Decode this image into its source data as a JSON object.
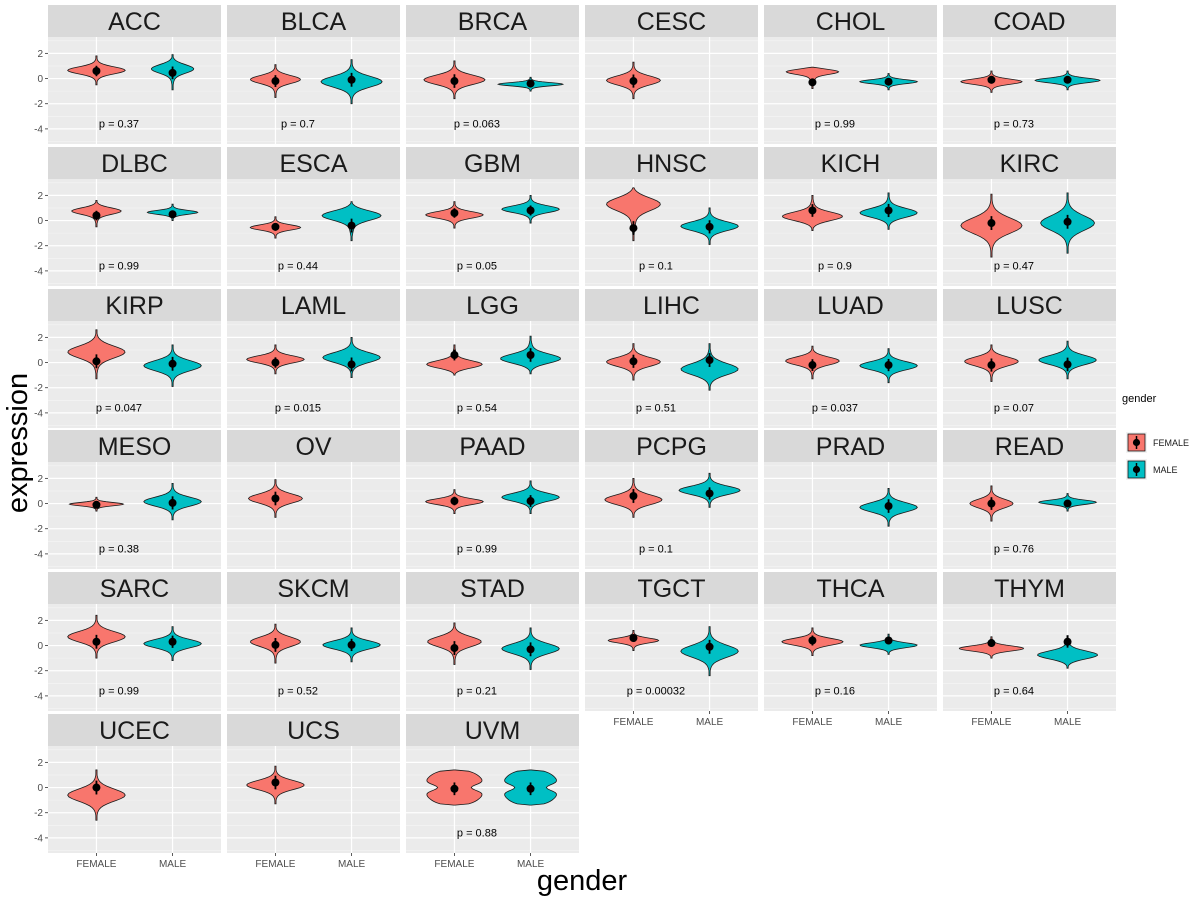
{
  "chart_data": {
    "type": "violin",
    "xlabel": "gender",
    "ylabel": "expression",
    "categories": [
      "FEMALE",
      "MALE"
    ],
    "y_ticks": [
      2,
      0,
      -2,
      -4
    ],
    "ylim": [
      -5.2,
      3.3
    ],
    "legend": {
      "title": "gender",
      "position": "right",
      "entries": [
        {
          "label": "FEMALE",
          "color": "#F8766D"
        },
        {
          "label": "MALE",
          "color": "#00BFC4"
        }
      ]
    },
    "panel_background": "#EBEBEB",
    "strip_background": "#D9D9D9",
    "panels": [
      {
        "name": "ACC",
        "p": "p = 0.37",
        "groups": [
          {
            "g": "FEMALE",
            "mean": 0.6,
            "lo": -0.5,
            "hi": 1.8,
            "w": 0.8,
            "peak": 0.5
          },
          {
            "g": "MALE",
            "mean": 0.45,
            "lo": -0.9,
            "hi": 1.9,
            "w": 0.6,
            "peak": 0.4
          }
        ]
      },
      {
        "name": "BLCA",
        "p": "p = 0.7",
        "groups": [
          {
            "g": "FEMALE",
            "mean": -0.2,
            "lo": -1.5,
            "hi": 1.1,
            "w": 0.7,
            "peak": 0.45
          },
          {
            "g": "MALE",
            "mean": -0.1,
            "lo": -2.0,
            "hi": 1.5,
            "w": 0.85,
            "peak": 0.5
          }
        ]
      },
      {
        "name": "BRCA",
        "p": "p = 0.063",
        "groups": [
          {
            "g": "FEMALE",
            "mean": -0.2,
            "lo": -1.6,
            "hi": 1.4,
            "w": 0.85,
            "peak": 0.5
          },
          {
            "g": "MALE",
            "mean": -0.4,
            "lo": -1.0,
            "hi": 0.1,
            "w": 0.9,
            "peak": 0.5
          }
        ]
      },
      {
        "name": "CESC",
        "p": "",
        "groups": [
          {
            "g": "FEMALE",
            "mean": -0.2,
            "lo": -1.6,
            "hi": 1.3,
            "w": 0.75,
            "peak": 0.5
          }
        ]
      },
      {
        "name": "CHOL",
        "p": "p = 0.99",
        "groups": [
          {
            "g": "FEMALE",
            "mean": -0.3,
            "lo": -0.8,
            "hi": 0.9,
            "w": 0.85,
            "peak": 0.2
          },
          {
            "g": "MALE",
            "mean": -0.25,
            "lo": -0.9,
            "hi": 0.4,
            "w": 0.8,
            "peak": 0.5
          }
        ]
      },
      {
        "name": "COAD",
        "p": "p = 0.73",
        "groups": [
          {
            "g": "FEMALE",
            "mean": -0.1,
            "lo": -1.1,
            "hi": 0.6,
            "w": 0.85,
            "peak": 0.5
          },
          {
            "g": "MALE",
            "mean": -0.1,
            "lo": -0.9,
            "hi": 0.6,
            "w": 0.9,
            "peak": 0.5
          }
        ]
      },
      {
        "name": "DLBC",
        "p": "p = 0.99",
        "groups": [
          {
            "g": "FEMALE",
            "mean": 0.4,
            "lo": -0.5,
            "hi": 1.6,
            "w": 0.7,
            "peak": 0.4
          },
          {
            "g": "MALE",
            "mean": 0.5,
            "lo": 0.0,
            "hi": 1.3,
            "w": 0.7,
            "peak": 0.5
          }
        ]
      },
      {
        "name": "ESCA",
        "p": "p = 0.44",
        "groups": [
          {
            "g": "FEMALE",
            "mean": -0.5,
            "lo": -1.4,
            "hi": 0.3,
            "w": 0.7,
            "peak": 0.5
          },
          {
            "g": "MALE",
            "mean": -0.4,
            "lo": -1.6,
            "hi": 1.5,
            "w": 0.85,
            "peak": 0.35
          }
        ]
      },
      {
        "name": "GBM",
        "p": "p = 0.05",
        "groups": [
          {
            "g": "FEMALE",
            "mean": 0.6,
            "lo": -0.6,
            "hi": 1.5,
            "w": 0.8,
            "peak": 0.5
          },
          {
            "g": "MALE",
            "mean": 0.8,
            "lo": -0.2,
            "hi": 2.0,
            "w": 0.8,
            "peak": 0.5
          }
        ]
      },
      {
        "name": "HNSC",
        "p": "p = 0.1",
        "groups": [
          {
            "g": "FEMALE",
            "mean": -0.6,
            "lo": -1.6,
            "hi": 2.6,
            "w": 0.8,
            "peak": 0.3
          },
          {
            "g": "MALE",
            "mean": -0.5,
            "lo": -1.9,
            "hi": 1.0,
            "w": 0.8,
            "peak": 0.5
          }
        ]
      },
      {
        "name": "KICH",
        "p": "p = 0.9",
        "groups": [
          {
            "g": "FEMALE",
            "mean": 0.8,
            "lo": -0.8,
            "hi": 2.0,
            "w": 0.85,
            "peak": 0.6
          },
          {
            "g": "MALE",
            "mean": 0.8,
            "lo": -0.7,
            "hi": 2.2,
            "w": 0.8,
            "peak": 0.55
          }
        ]
      },
      {
        "name": "KIRC",
        "p": "p = 0.47",
        "groups": [
          {
            "g": "FEMALE",
            "mean": -0.2,
            "lo": -2.9,
            "hi": 2.1,
            "w": 0.85,
            "peak": 0.5
          },
          {
            "g": "MALE",
            "mean": -0.1,
            "lo": -2.6,
            "hi": 2.2,
            "w": 0.75,
            "peak": 0.5
          }
        ]
      },
      {
        "name": "KIRP",
        "p": "p = 0.047",
        "groups": [
          {
            "g": "FEMALE",
            "mean": 0.1,
            "lo": -1.3,
            "hi": 2.6,
            "w": 0.8,
            "peak": 0.45
          },
          {
            "g": "MALE",
            "mean": -0.1,
            "lo": -1.9,
            "hi": 1.4,
            "w": 0.8,
            "peak": 0.5
          }
        ]
      },
      {
        "name": "LAML",
        "p": "p = 0.015",
        "groups": [
          {
            "g": "FEMALE",
            "mean": 0.0,
            "lo": -0.9,
            "hi": 1.4,
            "w": 0.8,
            "peak": 0.5
          },
          {
            "g": "MALE",
            "mean": -0.15,
            "lo": -1.2,
            "hi": 2.0,
            "w": 0.8,
            "peak": 0.5
          }
        ]
      },
      {
        "name": "LGG",
        "p": "p = 0.54",
        "groups": [
          {
            "g": "FEMALE",
            "mean": 0.6,
            "lo": -1.0,
            "hi": 1.4,
            "w": 0.8,
            "peak": 0.65
          },
          {
            "g": "MALE",
            "mean": 0.6,
            "lo": -0.9,
            "hi": 2.1,
            "w": 0.85,
            "peak": 0.6
          }
        ]
      },
      {
        "name": "LIHC",
        "p": "p = 0.51",
        "groups": [
          {
            "g": "FEMALE",
            "mean": 0.1,
            "lo": -1.4,
            "hi": 1.5,
            "w": 0.75,
            "peak": 0.5
          },
          {
            "g": "MALE",
            "mean": 0.2,
            "lo": -2.2,
            "hi": 1.5,
            "w": 0.8,
            "peak": 0.55
          }
        ]
      },
      {
        "name": "LUAD",
        "p": "p = 0.037",
        "groups": [
          {
            "g": "FEMALE",
            "mean": -0.2,
            "lo": -1.3,
            "hi": 1.3,
            "w": 0.75,
            "peak": 0.45
          },
          {
            "g": "MALE",
            "mean": -0.2,
            "lo": -1.6,
            "hi": 1.1,
            "w": 0.8,
            "peak": 0.5
          }
        ]
      },
      {
        "name": "LUSC",
        "p": "p = 0.07",
        "groups": [
          {
            "g": "FEMALE",
            "mean": -0.2,
            "lo": -1.5,
            "hi": 1.4,
            "w": 0.75,
            "peak": 0.45
          },
          {
            "g": "MALE",
            "mean": -0.15,
            "lo": -1.3,
            "hi": 1.7,
            "w": 0.8,
            "peak": 0.5
          }
        ]
      },
      {
        "name": "MESO",
        "p": "p = 0.38",
        "groups": [
          {
            "g": "FEMALE",
            "mean": -0.1,
            "lo": -0.6,
            "hi": 0.5,
            "w": 0.75,
            "peak": 0.5
          },
          {
            "g": "MALE",
            "mean": 0.05,
            "lo": -1.3,
            "hi": 1.6,
            "w": 0.8,
            "peak": 0.5
          }
        ]
      },
      {
        "name": "OV",
        "p": "",
        "groups": [
          {
            "g": "FEMALE",
            "mean": 0.4,
            "lo": -1.1,
            "hi": 1.9,
            "w": 0.75,
            "peak": 0.5
          }
        ]
      },
      {
        "name": "PAAD",
        "p": "p = 0.99",
        "groups": [
          {
            "g": "FEMALE",
            "mean": 0.2,
            "lo": -0.8,
            "hi": 1.1,
            "w": 0.8,
            "peak": 0.5
          },
          {
            "g": "MALE",
            "mean": 0.2,
            "lo": -0.8,
            "hi": 1.8,
            "w": 0.8,
            "peak": 0.5
          }
        ]
      },
      {
        "name": "PCPG",
        "p": "p = 0.1",
        "groups": [
          {
            "g": "FEMALE",
            "mean": 0.6,
            "lo": -1.1,
            "hi": 2.0,
            "w": 0.8,
            "peak": 0.55
          },
          {
            "g": "MALE",
            "mean": 0.8,
            "lo": -0.3,
            "hi": 2.4,
            "w": 0.85,
            "peak": 0.5
          }
        ]
      },
      {
        "name": "PRAD",
        "p": "",
        "groups": [
          {
            "g": "MALE",
            "mean": -0.2,
            "lo": -1.8,
            "hi": 1.2,
            "w": 0.8,
            "peak": 0.5
          }
        ]
      },
      {
        "name": "READ",
        "p": "p = 0.76",
        "groups": [
          {
            "g": "FEMALE",
            "mean": 0.0,
            "lo": -1.4,
            "hi": 1.4,
            "w": 0.6,
            "peak": 0.5
          },
          {
            "g": "MALE",
            "mean": 0.0,
            "lo": -0.6,
            "hi": 0.8,
            "w": 0.8,
            "peak": 0.5
          }
        ]
      },
      {
        "name": "SARC",
        "p": "p = 0.99",
        "groups": [
          {
            "g": "FEMALE",
            "mean": 0.3,
            "lo": -1.0,
            "hi": 2.4,
            "w": 0.8,
            "peak": 0.5
          },
          {
            "g": "MALE",
            "mean": 0.3,
            "lo": -1.2,
            "hi": 1.5,
            "w": 0.8,
            "peak": 0.5
          }
        ]
      },
      {
        "name": "SKCM",
        "p": "p = 0.52",
        "groups": [
          {
            "g": "FEMALE",
            "mean": 0.05,
            "lo": -1.4,
            "hi": 1.7,
            "w": 0.7,
            "peak": 0.45
          },
          {
            "g": "MALE",
            "mean": 0.05,
            "lo": -1.3,
            "hi": 1.4,
            "w": 0.8,
            "peak": 0.5
          }
        ]
      },
      {
        "name": "STAD",
        "p": "p = 0.21",
        "groups": [
          {
            "g": "FEMALE",
            "mean": -0.2,
            "lo": -1.5,
            "hi": 1.8,
            "w": 0.75,
            "peak": 0.45
          },
          {
            "g": "MALE",
            "mean": -0.3,
            "lo": -1.9,
            "hi": 1.4,
            "w": 0.8,
            "peak": 0.5
          }
        ]
      },
      {
        "name": "TGCT",
        "p": "p = 0.00032",
        "groups": [
          {
            "g": "FEMALE",
            "mean": 0.6,
            "lo": -0.4,
            "hi": 1.2,
            "w": 0.7,
            "peak": 0.5
          },
          {
            "g": "MALE",
            "mean": -0.1,
            "lo": -2.4,
            "hi": 1.5,
            "w": 0.8,
            "peak": 0.5
          }
        ]
      },
      {
        "name": "THCA",
        "p": "p = 0.16",
        "groups": [
          {
            "g": "FEMALE",
            "mean": 0.4,
            "lo": -0.8,
            "hi": 1.4,
            "w": 0.85,
            "peak": 0.5
          },
          {
            "g": "MALE",
            "mean": 0.4,
            "lo": -0.7,
            "hi": 0.9,
            "w": 0.8,
            "peak": 0.55
          }
        ]
      },
      {
        "name": "THYM",
        "p": "p = 0.64",
        "groups": [
          {
            "g": "FEMALE",
            "mean": 0.2,
            "lo": -1.0,
            "hi": 0.7,
            "w": 0.9,
            "peak": 0.55
          },
          {
            "g": "MALE",
            "mean": 0.3,
            "lo": -1.8,
            "hi": 0.8,
            "w": 0.85,
            "peak": 0.6
          }
        ]
      },
      {
        "name": "UCEC",
        "p": "",
        "groups": [
          {
            "g": "FEMALE",
            "mean": 0.0,
            "lo": -2.6,
            "hi": 1.4,
            "w": 0.8,
            "peak": 0.5
          }
        ]
      },
      {
        "name": "UCS",
        "p": "",
        "groups": [
          {
            "g": "FEMALE",
            "mean": 0.4,
            "lo": -1.3,
            "hi": 1.7,
            "w": 0.8,
            "peak": 0.5
          }
        ]
      },
      {
        "name": "UVM",
        "p": "p = 0.88",
        "groups": [
          {
            "g": "FEMALE",
            "mean": -0.1,
            "lo": -1.4,
            "hi": 1.4,
            "w": 0.85,
            "peak": 0.75,
            "shape": "flat"
          },
          {
            "g": "MALE",
            "mean": -0.1,
            "lo": -1.4,
            "hi": 1.4,
            "w": 0.8,
            "peak": 0.75,
            "shape": "flat"
          }
        ]
      }
    ]
  }
}
